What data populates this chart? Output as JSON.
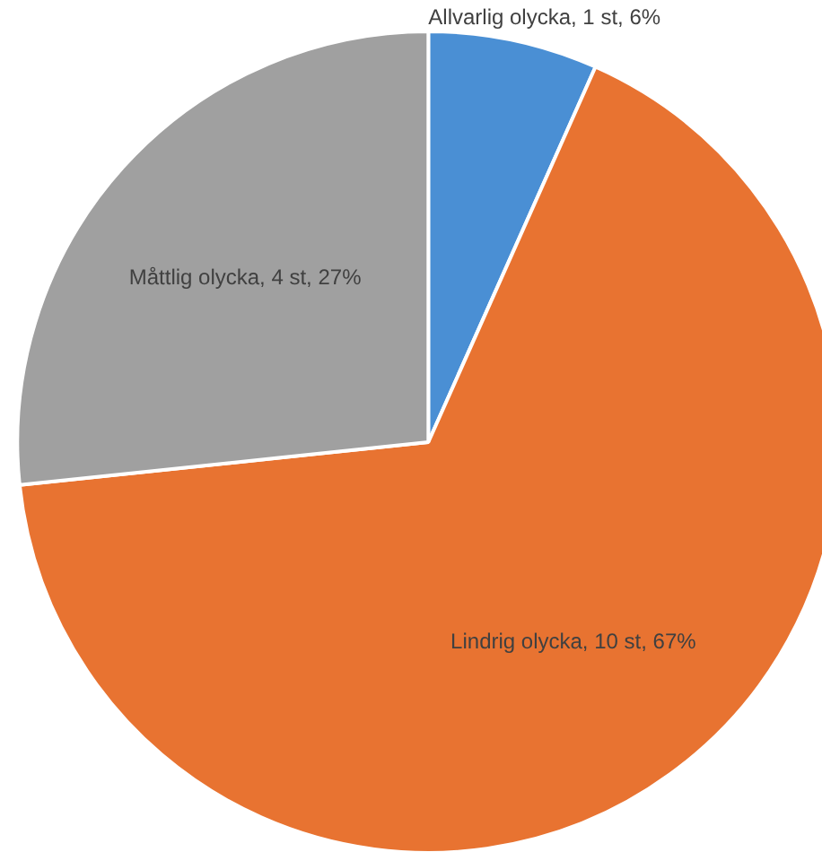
{
  "chart_data": {
    "type": "pie",
    "categories": [
      "Allvarlig olycka",
      "Lindrig olycka",
      "Måttlig olycka"
    ],
    "values": [
      1,
      10,
      4
    ],
    "value_labels": [
      "1 st, 6%",
      "10 st, 67%",
      "4 st, 27%"
    ],
    "colors": [
      "#4a8fd4",
      "#e87331",
      "#a0a0a0"
    ]
  }
}
